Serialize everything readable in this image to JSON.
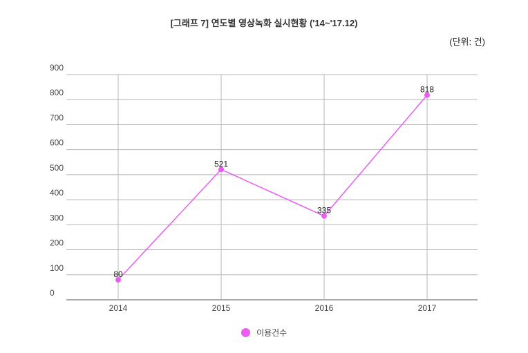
{
  "title": "[그래프 7] 연도별 영상녹화 실시현황 ('14~'17.12)",
  "unit_label": "(단위: 건)",
  "colors": {
    "series": "#ea5cf4",
    "grid": "#b5b5b5",
    "axis": "#555555"
  },
  "chart_data": {
    "type": "line",
    "title": "[그래프 7] 연도별 영상녹화 실시현황 ('14~'17.12)",
    "categories": [
      "2014",
      "2015",
      "2016",
      "2017"
    ],
    "series": [
      {
        "name": "이용건수",
        "values": [
          80,
          521,
          335,
          818
        ]
      }
    ],
    "ylim": [
      0,
      900
    ],
    "yticks": [
      "0",
      "100",
      "200",
      "300",
      "400",
      "500",
      "600",
      "700",
      "800",
      "900"
    ],
    "grid": true,
    "legend": "bottom",
    "data_labels": true
  }
}
